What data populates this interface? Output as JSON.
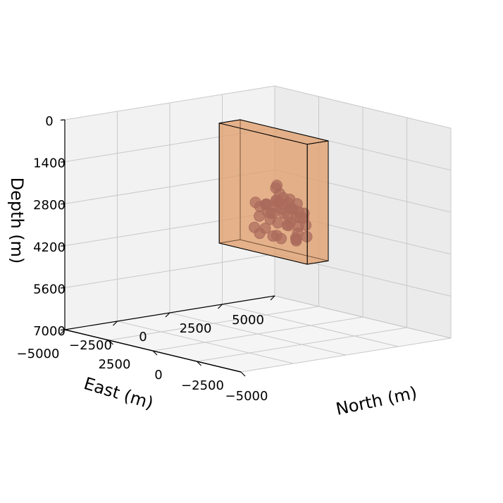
{
  "chart_data": {
    "type": "scatter",
    "title": "",
    "xlabel": "North (m)",
    "ylabel": "East (m)",
    "zlabel": "Depth (m)",
    "xlim": [
      -5000,
      5000
    ],
    "ylim": [
      -5000,
      5000
    ],
    "zlim": [
      0,
      7000
    ],
    "zinverted": true,
    "xticks": [
      {
        "value": 2500,
        "label": "2500"
      },
      {
        "value": 0,
        "label": "0"
      },
      {
        "value": -2500,
        "label": "−2500"
      },
      {
        "value": -5000,
        "label": "−5000"
      }
    ],
    "yticks": [
      {
        "value": 5000,
        "label": "5000"
      },
      {
        "value": 2500,
        "label": "2500"
      },
      {
        "value": 0,
        "label": "0"
      },
      {
        "value": -2500,
        "label": "−2500"
      },
      {
        "value": -5000,
        "label": "−5000"
      }
    ],
    "zticks": [
      {
        "value": 0,
        "label": "0"
      },
      {
        "value": 1400,
        "label": "1400"
      },
      {
        "value": 2800,
        "label": "2800"
      },
      {
        "value": 4200,
        "label": "4200"
      },
      {
        "value": 5600,
        "label": "5600"
      },
      {
        "value": 7000,
        "label": "7000"
      }
    ],
    "grid": true,
    "box": {
      "north_range": [
        -4000,
        1000
      ],
      "east_range": [
        -1000,
        0
      ],
      "depth_range": [
        0,
        4000
      ],
      "face_color": "#e0a070",
      "edge_color": "#000000"
    },
    "series": [
      {
        "marker_color": "#6b2a45",
        "points": [
          [
            -1437,
            -300,
            1810
          ],
          [
            -1260,
            -200,
            1930
          ],
          [
            -1510,
            -400,
            2330
          ],
          [
            -1350,
            -100,
            2120
          ],
          [
            -1640,
            -500,
            2250
          ],
          [
            -1800,
            -300,
            2170
          ],
          [
            -1900,
            -600,
            2260
          ],
          [
            -2050,
            -200,
            2200
          ],
          [
            -2200,
            -400,
            2280
          ],
          [
            -2350,
            -100,
            2320
          ],
          [
            -2500,
            -500,
            2400
          ],
          [
            -2680,
            -300,
            2520
          ],
          [
            -2860,
            -200,
            2550
          ],
          [
            -3100,
            -600,
            2620
          ],
          [
            -3200,
            -400,
            2880
          ],
          [
            -2950,
            -300,
            2690
          ],
          [
            -2680,
            -700,
            2830
          ],
          [
            -2420,
            -200,
            2740
          ],
          [
            -2300,
            -500,
            2680
          ],
          [
            -2100,
            -100,
            2530
          ],
          [
            -1950,
            -400,
            2660
          ],
          [
            -1700,
            -300,
            2560
          ],
          [
            -1450,
            -600,
            2710
          ],
          [
            -1260,
            -200,
            2560
          ],
          [
            -1090,
            -500,
            2460
          ],
          [
            -800,
            -300,
            2540
          ],
          [
            -580,
            -100,
            2580
          ],
          [
            -340,
            -400,
            2520
          ],
          [
            -360,
            -200,
            2680
          ],
          [
            -900,
            -300,
            2760
          ],
          [
            -800,
            -600,
            2890
          ],
          [
            -1300,
            -500,
            2940
          ],
          [
            -1490,
            -300,
            3050
          ],
          [
            -1900,
            -200,
            3080
          ],
          [
            -2220,
            -400,
            3030
          ],
          [
            -2650,
            -300,
            3010
          ],
          [
            -2980,
            -600,
            3150
          ],
          [
            -3020,
            -200,
            3310
          ],
          [
            -2750,
            -500,
            3360
          ],
          [
            -2540,
            -300,
            3460
          ],
          [
            -2300,
            -100,
            3560
          ],
          [
            -1800,
            -400,
            3520
          ],
          [
            -1430,
            -300,
            3480
          ],
          [
            -1100,
            -200,
            3560
          ],
          [
            -700,
            -500,
            3490
          ],
          [
            -540,
            -100,
            3390
          ],
          [
            -160,
            -300,
            3390
          ],
          [
            -2470,
            -400,
            2440
          ],
          [
            -1690,
            -200,
            2420
          ],
          [
            -1220,
            -300,
            2770
          ]
        ]
      }
    ]
  }
}
